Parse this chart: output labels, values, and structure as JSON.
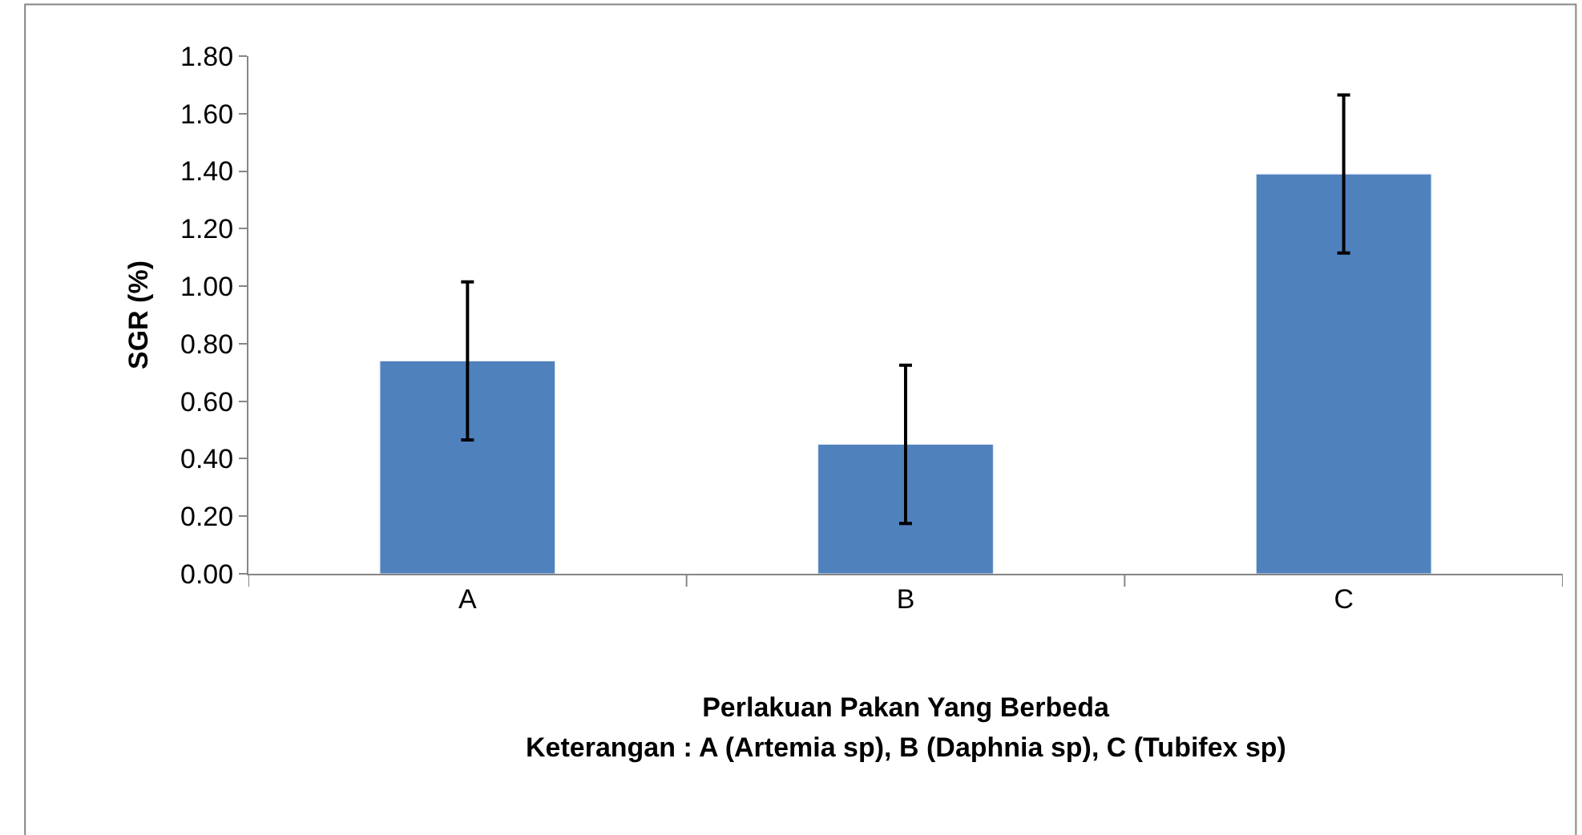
{
  "chart_data": {
    "type": "bar",
    "ylabel": "SGR (%)",
    "xlabel": "Perlakuan Pakan Yang Berbeda",
    "annotations": [
      "Keterangan : A (Artemia sp), B (Daphnia sp), C (Tubifex sp)"
    ],
    "categories": [
      "A",
      "B",
      "C"
    ],
    "values": [
      0.74,
      0.45,
      1.39
    ],
    "errors": [
      0.275,
      0.275,
      0.275
    ],
    "color": "#4f81bd",
    "ylim": [
      0,
      1.8
    ],
    "yticks": [
      {
        "value": 0,
        "label": "0.00"
      },
      {
        "value": 0.2,
        "label": "0.20"
      },
      {
        "value": 0.4,
        "label": "0.40"
      },
      {
        "value": 0.6,
        "label": "0.60"
      },
      {
        "value": 0.8,
        "label": "0.80"
      },
      {
        "value": 1.0,
        "label": "1.00"
      },
      {
        "value": 1.2,
        "label": "1.20"
      },
      {
        "value": 1.4,
        "label": "1.40"
      },
      {
        "value": 1.6,
        "label": "1.60"
      },
      {
        "value": 1.8,
        "label": "1.80"
      }
    ],
    "legend": false
  }
}
